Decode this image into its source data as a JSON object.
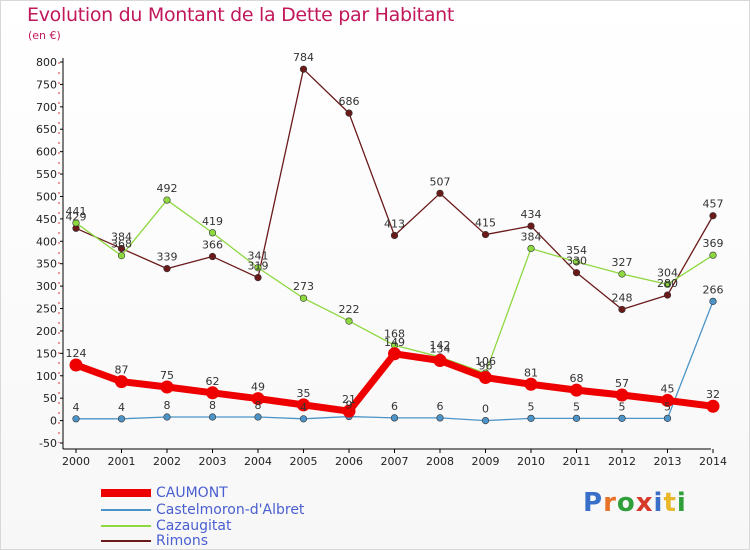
{
  "title": "Evolution du Montant de la Dette par Habitant",
  "unit": "(en €)",
  "logo_text": "Proxiti",
  "chart_data": {
    "type": "line",
    "title": "Evolution du Montant de la Dette par Habitant",
    "subtitle": "(en €)",
    "xlabel": "",
    "ylabel": "",
    "x": [
      "2000",
      "2001",
      "2002",
      "2003",
      "2004",
      "2005",
      "2006",
      "2007",
      "2008",
      "2009",
      "2010",
      "2011",
      "2012",
      "2013",
      "2014"
    ],
    "ylim": [
      -50,
      800
    ],
    "yticks": [
      -50,
      0,
      50,
      100,
      150,
      200,
      250,
      300,
      350,
      400,
      450,
      500,
      550,
      600,
      650,
      700,
      750,
      800
    ],
    "grid": false,
    "legend": "bottom-left",
    "series": [
      {
        "name": "CAUMONT",
        "color": "#ee0000",
        "values": [
          124,
          87,
          75,
          62,
          49,
          35,
          21,
          149,
          134,
          96,
          81,
          68,
          57,
          45,
          32
        ]
      },
      {
        "name": "Castelmoron-d'Albret",
        "color": "#4c94c8",
        "values": [
          4,
          4,
          8,
          8,
          8,
          4,
          9,
          6,
          6,
          0,
          5,
          5,
          5,
          5,
          266
        ]
      },
      {
        "name": "Cazaugitat",
        "color": "#8ed840",
        "values": [
          441,
          368,
          492,
          419,
          341,
          273,
          222,
          168,
          142,
          106,
          384,
          354,
          327,
          304,
          369
        ]
      },
      {
        "name": "Rimons",
        "color": "#6b1a1a",
        "values": [
          429,
          384,
          339,
          366,
          319,
          784,
          686,
          413,
          507,
          415,
          434,
          330,
          248,
          280,
          457
        ]
      }
    ]
  }
}
